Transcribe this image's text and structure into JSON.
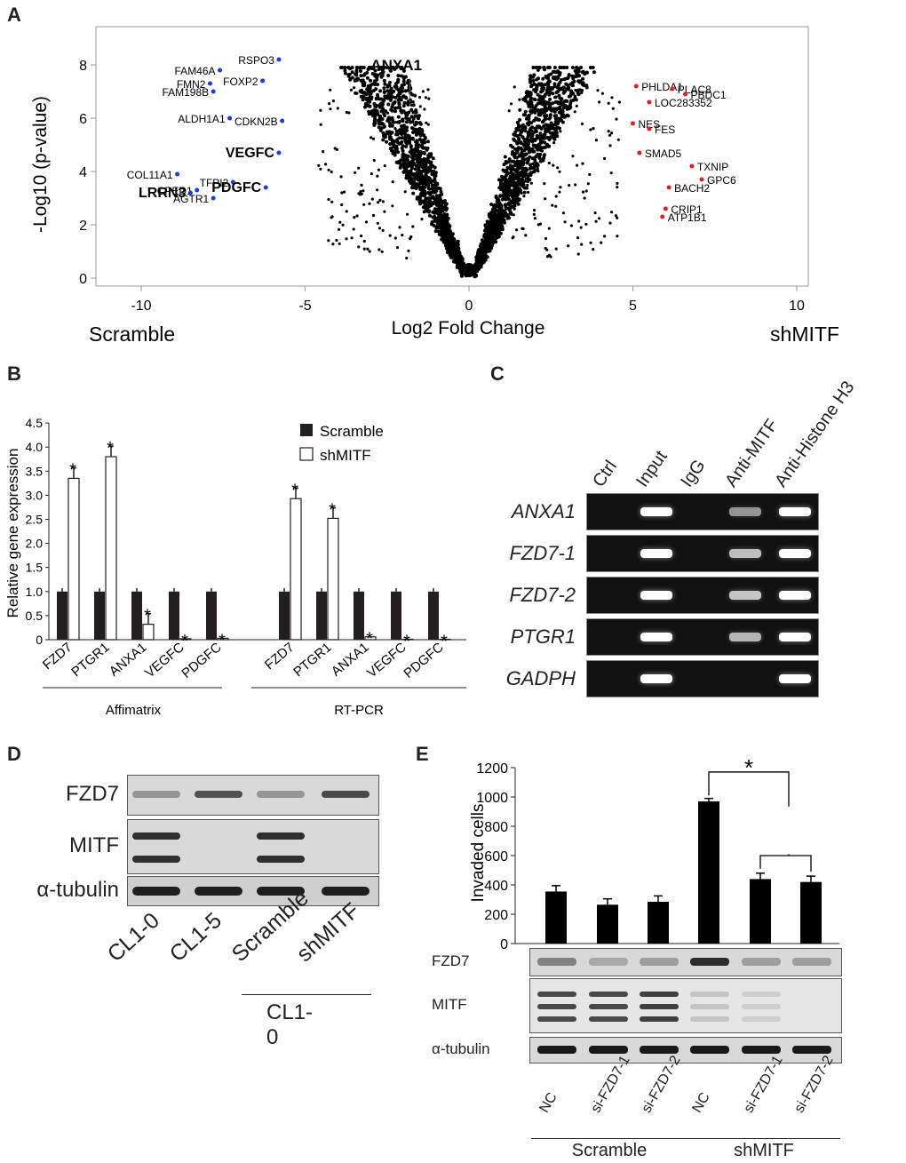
{
  "panels": {
    "a": "A",
    "b": "B",
    "c": "C",
    "d": "D",
    "e": "E"
  },
  "volcano": {
    "ylabel": "-Log10 (p-value)",
    "xlabel": "Log2 Fold Change",
    "left_group": "Scramble",
    "right_group": "shMITF",
    "xticks": [
      "-10",
      "-5",
      "0",
      "5",
      "10"
    ],
    "yticks": [
      "0",
      "2",
      "4",
      "6",
      "8"
    ],
    "down_genes": [
      {
        "name": "RSPO3",
        "x": -5.8,
        "y": 8.2
      },
      {
        "name": "FAM46A",
        "x": -7.6,
        "y": 7.8
      },
      {
        "name": "FMN2",
        "x": -7.9,
        "y": 7.3
      },
      {
        "name": "FAM198B",
        "x": -7.8,
        "y": 7.0
      },
      {
        "name": "FOXP2",
        "x": -6.3,
        "y": 7.4
      },
      {
        "name": "ALDH1A1",
        "x": -7.3,
        "y": 6.0
      },
      {
        "name": "CDKN2B",
        "x": -5.7,
        "y": 5.9
      },
      {
        "name": "VEGFC",
        "x": -5.8,
        "y": 4.7
      },
      {
        "name": "COL11A1",
        "x": -8.9,
        "y": 3.9
      },
      {
        "name": "TFPI2",
        "x": -7.2,
        "y": 3.6
      },
      {
        "name": "CPED1",
        "x": -8.3,
        "y": 3.3
      },
      {
        "name": "PDGFC",
        "x": -6.2,
        "y": 3.4
      },
      {
        "name": "LRRN3",
        "x": -8.5,
        "y": 3.2
      },
      {
        "name": "AGTR1",
        "x": -7.8,
        "y": 3.0
      }
    ],
    "up_genes": [
      {
        "name": "PHLDA1",
        "x": 5.1,
        "y": 7.2
      },
      {
        "name": "PLAC8",
        "x": 6.2,
        "y": 7.1
      },
      {
        "name": "PBDC1",
        "x": 6.6,
        "y": 6.9
      },
      {
        "name": "LOC283352",
        "x": 5.5,
        "y": 6.6
      },
      {
        "name": "NES",
        "x": 5.0,
        "y": 5.8
      },
      {
        "name": "FES",
        "x": 5.5,
        "y": 5.6
      },
      {
        "name": "SMAD5",
        "x": 5.2,
        "y": 4.7
      },
      {
        "name": "TXNIP",
        "x": 6.8,
        "y": 4.2
      },
      {
        "name": "GPC6",
        "x": 7.1,
        "y": 3.7
      },
      {
        "name": "BACH2",
        "x": 6.1,
        "y": 3.4
      },
      {
        "name": "CRIP1",
        "x": 6.0,
        "y": 2.6
      },
      {
        "name": "ATP1B1",
        "x": 5.9,
        "y": 2.3
      }
    ],
    "highlight": "ANXA1"
  },
  "panel_b": {
    "ylabel": "Relative gene expression",
    "yticks": [
      "0",
      "0.5",
      "1.0",
      "1.5",
      "2.0",
      "2.5",
      "3.0",
      "3.5",
      "4.0",
      "4.5"
    ],
    "legend": [
      "Scramble",
      "shMITF"
    ],
    "group_labels": [
      "Affimatrix",
      "RT-PCR"
    ],
    "genes": [
      "FZD7",
      "PTGR1",
      "ANXA1",
      "VEGFC",
      "PDGFC"
    ]
  },
  "chart_data": [
    {
      "type": "bar",
      "title": "",
      "ylabel": "Relative gene expression",
      "categories": [
        "FZD7",
        "PTGR1",
        "ANXA1",
        "VEGFC",
        "PDGFC",
        "FZD7",
        "PTGR1",
        "ANXA1",
        "VEGFC",
        "PDGFC"
      ],
      "groups": [
        "Affimatrix",
        "Affimatrix",
        "Affimatrix",
        "Affimatrix",
        "Affimatrix",
        "RT-PCR",
        "RT-PCR",
        "RT-PCR",
        "RT-PCR",
        "RT-PCR"
      ],
      "ylim": [
        0,
        4.5
      ],
      "series": [
        {
          "name": "Scramble",
          "values": [
            1,
            1,
            1,
            1,
            1,
            1,
            1,
            1,
            1,
            1
          ]
        },
        {
          "name": "shMITF",
          "values": [
            3.35,
            3.8,
            0.32,
            0.02,
            0.03,
            2.93,
            2.52,
            0.06,
            0.01,
            0.01
          ]
        }
      ]
    },
    {
      "type": "bar",
      "title": "",
      "ylabel": "Invaded cells",
      "categories": [
        "NC",
        "si-FZD7-1",
        "si-FZD7-2",
        "NC",
        "si-FZD7-1",
        "si-FZD7-2"
      ],
      "groups": [
        "Scramble",
        "Scramble",
        "Scramble",
        "shMITF",
        "shMITF",
        "shMITF"
      ],
      "ylim": [
        0,
        1200
      ],
      "values": [
        355,
        265,
        285,
        970,
        440,
        420
      ]
    }
  ],
  "panel_c": {
    "lanes": [
      "Ctrl",
      "Input",
      "IgG",
      "Anti-MITF",
      "Anti-Histone H3"
    ],
    "rows": [
      "ANXA1",
      "FZD7-1",
      "FZD7-2",
      "PTGR1",
      "GADPH"
    ]
  },
  "panel_d": {
    "rows": [
      "FZD7",
      "MITF",
      "α-tubulin"
    ],
    "lanes": [
      "CL1-0",
      "CL1-5",
      "Scramble",
      "shMITF"
    ],
    "group": "CL1-0"
  },
  "panel_e": {
    "ylabel": "Invaded cells",
    "yticks": [
      "0",
      "200",
      "400",
      "600",
      "800",
      "1000",
      "1200"
    ],
    "rows": [
      "FZD7",
      "MITF",
      "α-tubulin"
    ],
    "lanes": [
      "NC",
      "si-FZD7-1",
      "si-FZD7-2",
      "NC",
      "si-FZD7-1",
      "si-FZD7-2"
    ],
    "groups": [
      "Scramble",
      "shMITF"
    ],
    "star": "*"
  }
}
